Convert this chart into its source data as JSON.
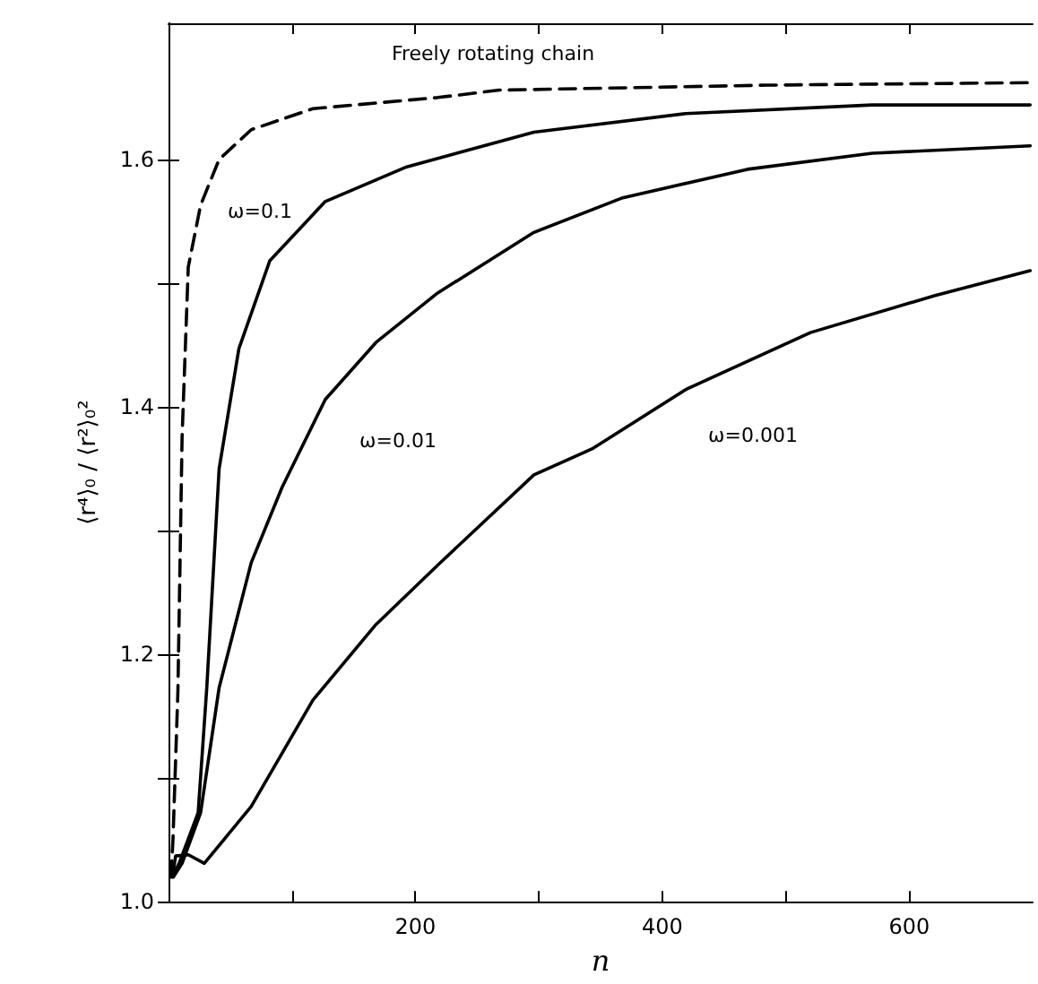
{
  "chart_data": {
    "type": "line",
    "xlabel": "n",
    "ylabel": "⟨r⁴⟩₀ / ⟨r²⟩₀²",
    "xlim": [
      0,
      700
    ],
    "ylim": [
      1.0,
      1.71
    ],
    "xticks": [
      {
        "value": 100,
        "label": null
      },
      200,
      {
        "value": 300,
        "label": null
      },
      400,
      {
        "value": 500,
        "label": null
      },
      600
    ],
    "yticks": [
      "1.0",
      {
        "value": 1.1,
        "label": null
      },
      1.2,
      {
        "value": 1.3,
        "label": null
      },
      1.4,
      {
        "value": 1.5,
        "label": null
      },
      1.6
    ],
    "grid": false,
    "marker": "none",
    "series": [
      {
        "color": "#000000",
        "line_style": "dashed",
        "x": [
          2,
          3.6,
          7.6,
          11,
          16,
          26,
          41,
          67,
          117,
          218,
          268,
          485,
          698
        ],
        "values": [
          1.02,
          1.05,
          1.17,
          1.376,
          1.513,
          1.563,
          1.6,
          1.624,
          1.641,
          1.65,
          1.656,
          1.66,
          1.662
        ]
      },
      {
        "color": "#000000",
        "line_style": "solid",
        "x": [
          3,
          8.6,
          24,
          31,
          41,
          57,
          82,
          127,
          193,
          296,
          419,
          570,
          698
        ],
        "values": [
          1.02,
          1.031,
          1.072,
          1.173,
          1.35,
          1.447,
          1.518,
          1.566,
          1.594,
          1.622,
          1.637,
          1.644,
          1.644
        ]
      },
      {
        "color": "#000000",
        "line_style": "solid",
        "x": [
          4,
          11,
          26,
          41,
          67,
          92,
          127,
          168,
          218,
          296,
          368,
          469,
          570,
          698
        ],
        "values": [
          1.02,
          1.031,
          1.072,
          1.173,
          1.274,
          1.335,
          1.406,
          1.452,
          1.492,
          1.541,
          1.569,
          1.592,
          1.605,
          1.611
        ]
      },
      {
        "color": "#000000",
        "line_style": "solid",
        "x": [
          3,
          5.8,
          16,
          29,
          67,
          117,
          168,
          218,
          296,
          343,
          419,
          520,
          621,
          698
        ],
        "values": [
          1.02,
          1.037,
          1.038,
          1.031,
          1.077,
          1.163,
          1.224,
          1.272,
          1.345,
          1.366,
          1.414,
          1.46,
          1.49,
          1.51
        ]
      }
    ],
    "annotations": [
      "Freely rotating chain",
      "ω=0.1",
      "ω=0.01",
      "ω=0.001"
    ]
  }
}
